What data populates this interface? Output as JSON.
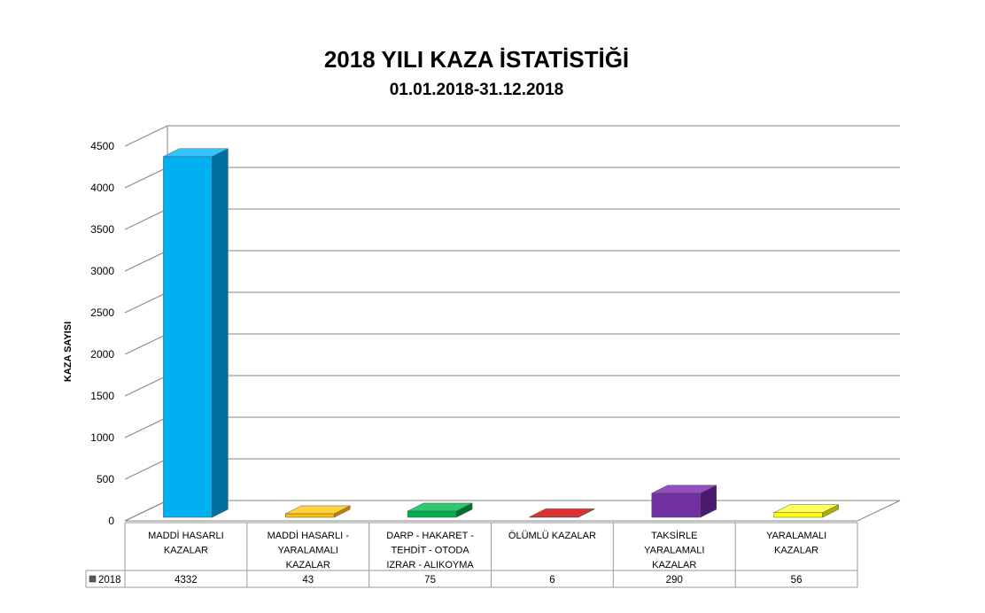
{
  "chart_data": {
    "type": "bar",
    "title": "2018 YILI KAZA İSTATİSTİĞİ",
    "subtitle": "01.01.2018-31.12.2018",
    "xlabel": "",
    "ylabel": "KAZA SAYISI",
    "ylim": [
      0,
      4500
    ],
    "yticks": [
      0,
      500,
      1000,
      1500,
      2000,
      2500,
      3000,
      3500,
      4000,
      4500
    ],
    "grid": true,
    "style": "3d-column-with-data-table",
    "categories": [
      [
        "MADDİ HASARLI",
        "KAZALAR"
      ],
      [
        "MADDİ HASARLI -",
        "YARALAMALI",
        "KAZALAR"
      ],
      [
        "DARP - HAKARET -",
        "TEHDİT - OTODA",
        "IZRAR - ALIKOYMA"
      ],
      [
        "ÖLÜMLÜ KAZALAR"
      ],
      [
        "TAKSİRLE",
        "YARALAMALI",
        "KAZALAR"
      ],
      [
        "YARALAMALI",
        "KAZALAR"
      ]
    ],
    "series": [
      {
        "name": "2018",
        "values": [
          4332,
          43,
          75,
          6,
          290,
          56
        ]
      }
    ],
    "colors": [
      "#00B0F0",
      "#FFC000",
      "#00B050",
      "#C00000",
      "#7030A0",
      "#FFFF00"
    ],
    "side_colors": [
      "#0070A0",
      "#C08000",
      "#007030",
      "#800000",
      "#4A1A70",
      "#B0B000"
    ],
    "top_colors": [
      "#33C4FF",
      "#FFD040",
      "#30C870",
      "#E03030",
      "#9050C0",
      "#FFFF60"
    ]
  }
}
